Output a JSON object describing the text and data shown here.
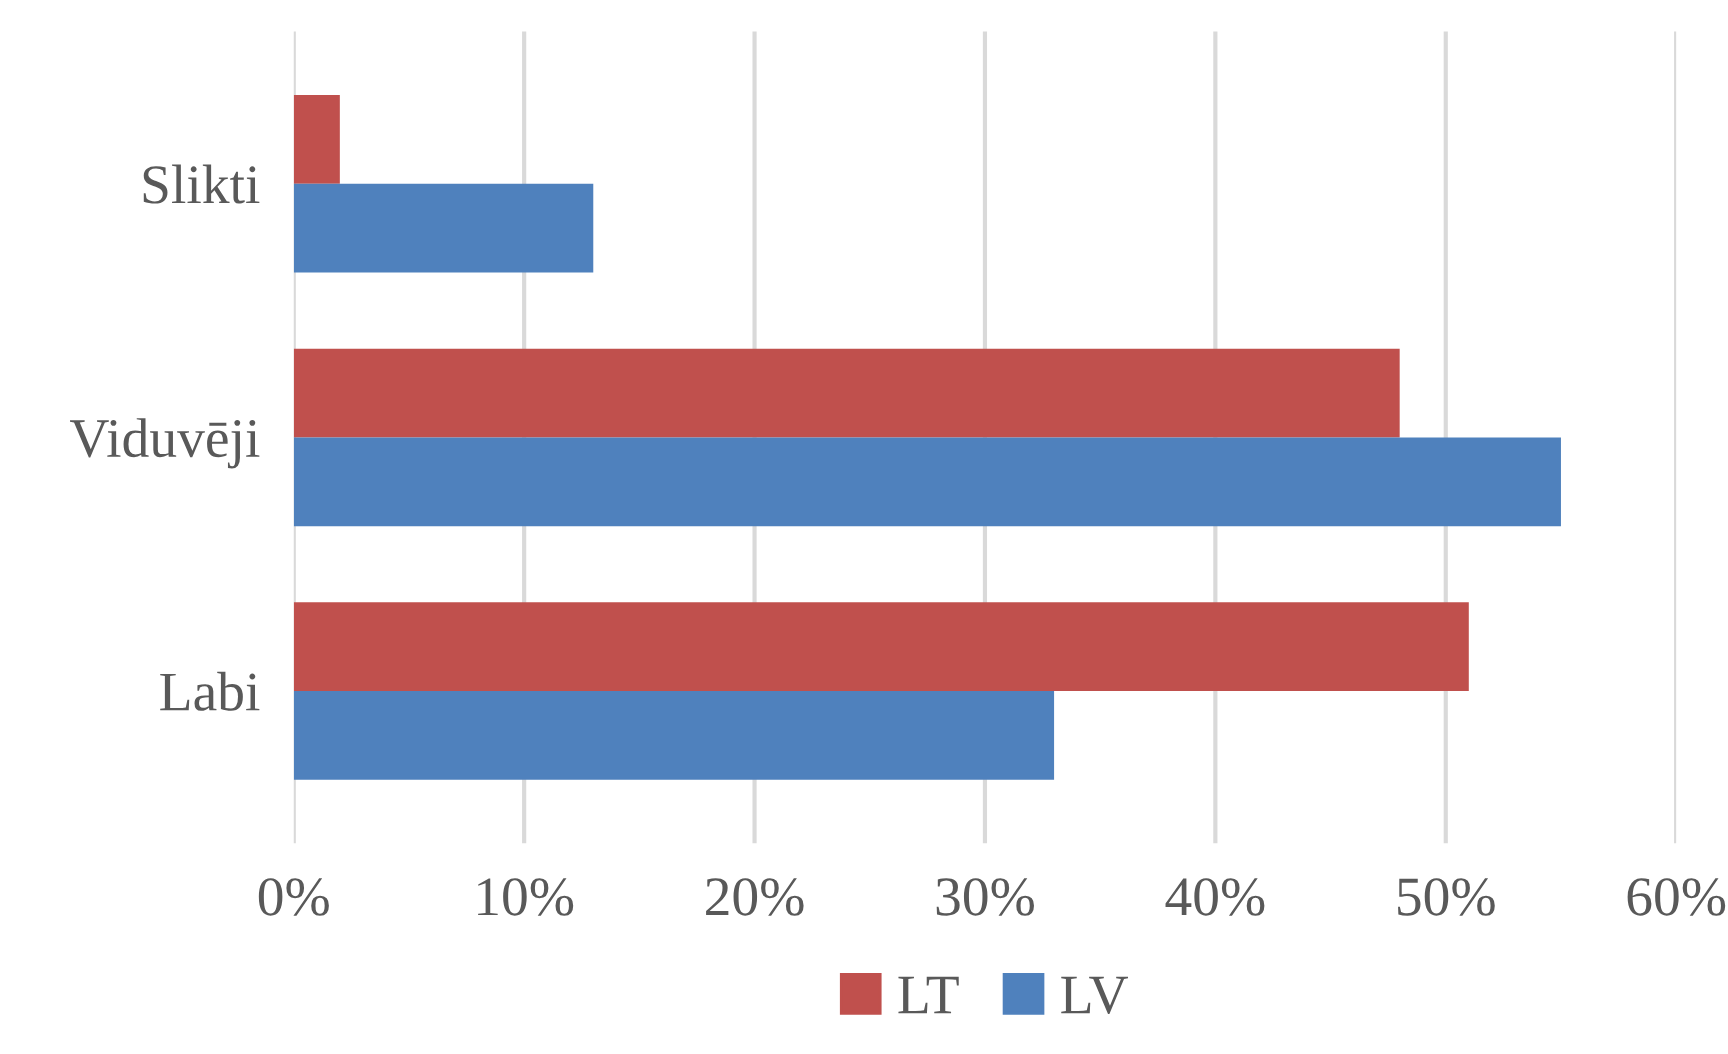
{
  "chart_data": {
    "type": "bar",
    "orientation": "horizontal",
    "categories": [
      "Slikti",
      "Viduvēji",
      "Labi"
    ],
    "series": [
      {
        "name": "LT",
        "color": "#c0504d",
        "values": [
          2,
          48,
          51
        ]
      },
      {
        "name": "LV",
        "color": "#4f81bd",
        "values": [
          13,
          55,
          33
        ]
      }
    ],
    "xlim": [
      0,
      60
    ],
    "xticks": [
      {
        "value": 0,
        "label": "0%"
      },
      {
        "value": 10,
        "label": "10%"
      },
      {
        "value": 20,
        "label": "20%"
      },
      {
        "value": 30,
        "label": "30%"
      },
      {
        "value": 40,
        "label": "40%"
      },
      {
        "value": 50,
        "label": "50%"
      },
      {
        "value": 60,
        "label": "60%"
      }
    ],
    "grid": "x",
    "legend": "bottom"
  }
}
